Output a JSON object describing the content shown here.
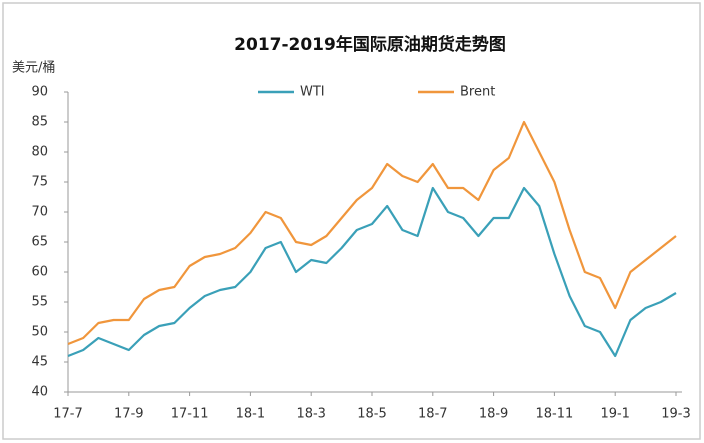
{
  "chart_data": {
    "type": "line",
    "title": "2017-2019年国际原油期货走势图",
    "y_label": "美元/桶",
    "categories": [
      "17-7",
      null,
      null,
      null,
      "17-9",
      null,
      null,
      null,
      "17-11",
      null,
      null,
      null,
      "18-1",
      null,
      null,
      null,
      "18-3",
      null,
      null,
      null,
      "18-5",
      null,
      null,
      null,
      "18-7",
      null,
      null,
      null,
      "18-9",
      null,
      null,
      null,
      "18-11",
      null,
      null,
      null,
      "19-1",
      null,
      null,
      null,
      "19-3"
    ],
    "series": [
      {
        "name": "WTI",
        "color": "#3aa0b8",
        "values": [
          46,
          47,
          49,
          48,
          47,
          49.5,
          51,
          51.5,
          54,
          56,
          57,
          57.5,
          60,
          64,
          65,
          60,
          62,
          61.5,
          64,
          67,
          68,
          71,
          67,
          66,
          74,
          70,
          69,
          66,
          69,
          69,
          74,
          71,
          63,
          56,
          51,
          50,
          46,
          52,
          54,
          55,
          56.5
        ]
      },
      {
        "name": "Brent",
        "color": "#f0963c",
        "values": [
          48,
          49,
          51.5,
          52,
          52,
          55.5,
          57,
          57.5,
          61,
          62.5,
          63,
          64,
          66.5,
          70,
          69,
          65,
          64.5,
          66,
          69,
          72,
          74,
          78,
          76,
          75,
          78,
          74,
          74,
          72,
          77,
          79,
          85,
          80,
          75,
          67,
          60,
          59,
          54,
          60,
          62,
          64,
          66
        ]
      }
    ],
    "ylim": [
      40,
      90
    ],
    "yticks": [
      40,
      45,
      50,
      55,
      60,
      65,
      70,
      75,
      80,
      85,
      90
    ],
    "legend": "top"
  }
}
